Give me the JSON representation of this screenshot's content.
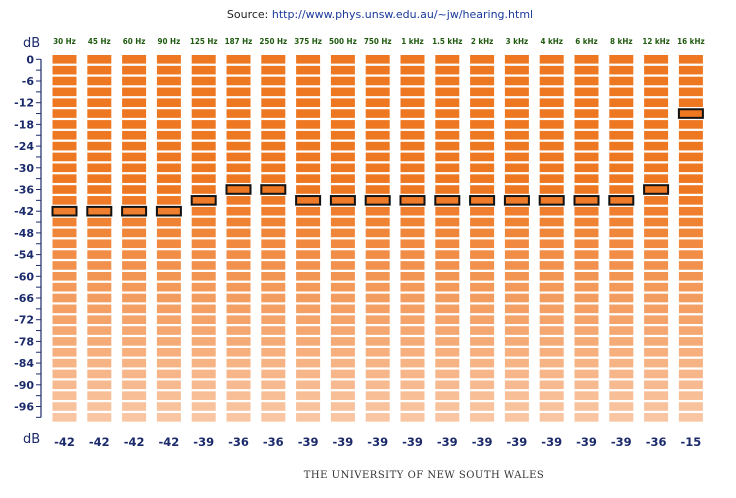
{
  "source": {
    "prefix": "Source: ",
    "url": "http://www.phys.unsw.edu.au/~jw/hearing.html"
  },
  "footer": "THE UNIVERSITY OF NEW SOUTH WALES",
  "chart_data": {
    "type": "table",
    "unit_label": "dB",
    "frequencies": [
      "30 Hz",
      "45 Hz",
      "60 Hz",
      "90 Hz",
      "125 Hz",
      "187 Hz",
      "250 Hz",
      "375 Hz",
      "500 Hz",
      "750 Hz",
      "1 kHz",
      "1.5 kHz",
      "2 kHz",
      "3 kHz",
      "4 kHz",
      "6 kHz",
      "8 kHz",
      "12 kHz",
      "16 kHz"
    ],
    "selected_db": [
      -42,
      -42,
      -42,
      -42,
      -39,
      -36,
      -36,
      -39,
      -39,
      -39,
      -39,
      -39,
      -39,
      -39,
      -39,
      -39,
      -39,
      -36,
      -15
    ],
    "y_ticks": [
      0,
      -6,
      -12,
      -18,
      -24,
      -30,
      -36,
      -42,
      -48,
      -54,
      -60,
      -66,
      -72,
      -78,
      -84,
      -90,
      -96
    ],
    "ylim": [
      0,
      -99
    ],
    "step_db": 3,
    "colors": {
      "loud": "#ee7722",
      "quiet": "#f9c9a8",
      "selected_outline": "#111111",
      "axis": "#1b2a6b",
      "freq_label": "#1f5a10"
    }
  }
}
